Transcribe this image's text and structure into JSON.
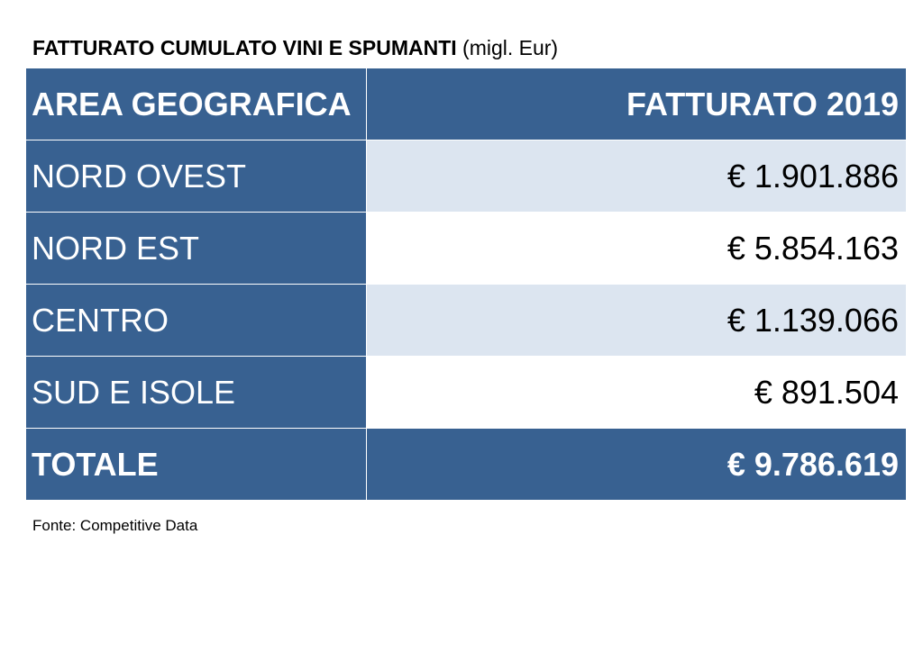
{
  "title": {
    "main": "FATTURATO CUMULATO VINI E SPUMANTI",
    "unit": "(migl. Eur)"
  },
  "chart_data": {
    "type": "table",
    "columns": [
      "AREA GEOGRAFICA",
      "FATTURATO 2019"
    ],
    "rows": [
      {
        "area": "NORD OVEST",
        "value": "€ 1.901.886"
      },
      {
        "area": "NORD EST",
        "value": "€ 5.854.163"
      },
      {
        "area": "CENTRO",
        "value": "€ 1.139.066"
      },
      {
        "area": "SUD E ISOLE",
        "value": "€ 891.504"
      }
    ],
    "total": {
      "label": "TOTALE",
      "value": "€ 9.786.619"
    }
  },
  "source": "Fonte: Competitive Data",
  "colors": {
    "header_blue": "#386191",
    "row_light": "#dce5f0",
    "row_white": "#ffffff"
  }
}
